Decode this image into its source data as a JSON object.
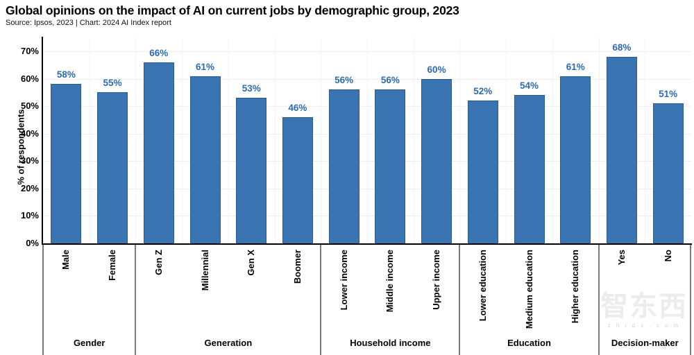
{
  "header": {
    "title": "Global opinions on the impact of AI on current jobs by demographic group, 2023",
    "source_line": "Source: Ipsos, 2023 | Chart: 2024 AI Index report"
  },
  "chart_data": {
    "type": "bar",
    "title": "Global opinions on the impact of AI on current jobs by demographic group, 2023",
    "subtitle": "Source: Ipsos, 2023 | Chart: 2024 AI Index report",
    "xlabel": "",
    "ylabel": "% of respondents",
    "ylim": [
      0,
      70
    ],
    "ytick_labels": [
      "0%",
      "10%",
      "20%",
      "30%",
      "40%",
      "50%",
      "60%",
      "70%"
    ],
    "grid": true,
    "legend_position": "none",
    "value_label_suffix": "%",
    "groups": [
      {
        "label": "Gender",
        "categories": [
          "Male",
          "Female"
        ],
        "values": [
          58,
          55
        ]
      },
      {
        "label": "Generation",
        "categories": [
          "Gen Z",
          "Millennial",
          "Gen X",
          "Boomer"
        ],
        "values": [
          66,
          61,
          53,
          46
        ]
      },
      {
        "label": "Household income",
        "categories": [
          "Lower income",
          "Middle income",
          "Upper income"
        ],
        "values": [
          56,
          56,
          60
        ]
      },
      {
        "label": "Education",
        "categories": [
          "Lower education",
          "Medium education",
          "Higher education"
        ],
        "values": [
          52,
          54,
          61
        ]
      },
      {
        "label": "Decision-maker",
        "categories": [
          "Yes",
          "No"
        ],
        "values": [
          68,
          51
        ]
      }
    ],
    "colors": {
      "bar_fill": "#3a74b3",
      "bar_border": "#2a5a94",
      "value_label": "#2d6cb0",
      "axis": "#000000",
      "separator": "#7a7a7a",
      "gridline": "#f1edec"
    }
  },
  "watermark": {
    "text": "智东西",
    "subtext": "z h i d x . c o m"
  }
}
